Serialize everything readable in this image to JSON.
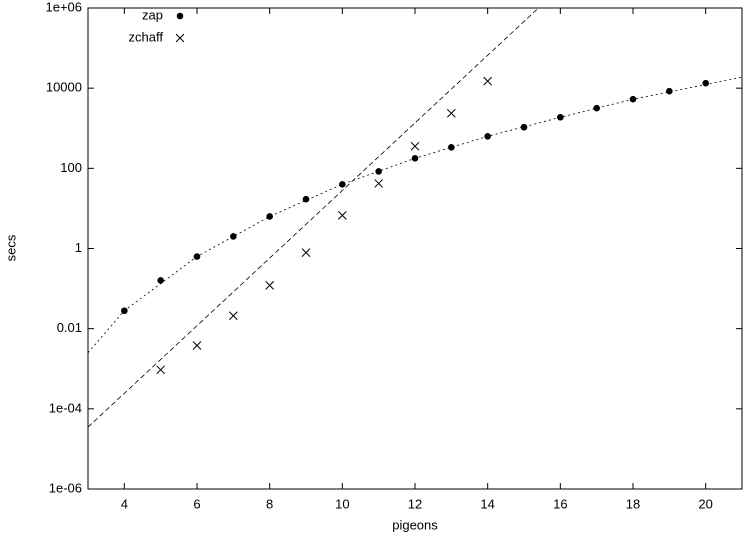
{
  "chart_data": {
    "type": "scatter",
    "xlabel": "pigeons",
    "ylabel": "secs",
    "xlim": [
      3,
      21
    ],
    "xticks": [
      4,
      6,
      8,
      10,
      12,
      14,
      16,
      18,
      20
    ],
    "ylim": [
      1e-06,
      1000000
    ],
    "log_y": true,
    "yticks": [
      {
        "value": 1e-06,
        "label": "1e-06"
      },
      {
        "value": 0.0001,
        "label": "1e-04"
      },
      0.01,
      1,
      100,
      10000,
      {
        "value": 1000000,
        "label": "1e+06"
      }
    ],
    "grid": false,
    "legend": "top-left",
    "series": [
      {
        "name": "zap",
        "marker": "circle",
        "color": "#000000",
        "x": [
          4,
          5,
          6,
          7,
          8,
          9,
          10,
          11,
          12,
          13,
          14,
          15,
          16,
          17,
          18,
          19,
          20
        ],
        "values": [
          0.028,
          0.16,
          0.63,
          2,
          6.3,
          17,
          40,
          84,
          178,
          335,
          630,
          1060,
          1880,
          3160,
          5310,
          8410,
          13300
        ]
      },
      {
        "name": "zchaff",
        "marker": "cross",
        "color": "#000000",
        "x": [
          5,
          6,
          7,
          8,
          9,
          10,
          11,
          12,
          13,
          14
        ],
        "values": [
          0.00094,
          0.0038,
          0.021,
          0.12,
          0.79,
          6.7,
          42,
          355,
          2370,
          15000
        ]
      }
    ],
    "fits": [
      {
        "color": "#000000",
        "dash": "2,3",
        "x": [
          3,
          4,
          6,
          8,
          10,
          12,
          14,
          16,
          18,
          21
        ],
        "values": [
          0.0025,
          0.028,
          0.63,
          6.3,
          40,
          178,
          630,
          1880,
          5310,
          18800
        ]
      },
      {
        "color": "#000000",
        "dash": "5,3",
        "x": [
          3,
          15.4
        ],
        "values": [
          3.5e-05,
          1000000
        ]
      }
    ]
  }
}
